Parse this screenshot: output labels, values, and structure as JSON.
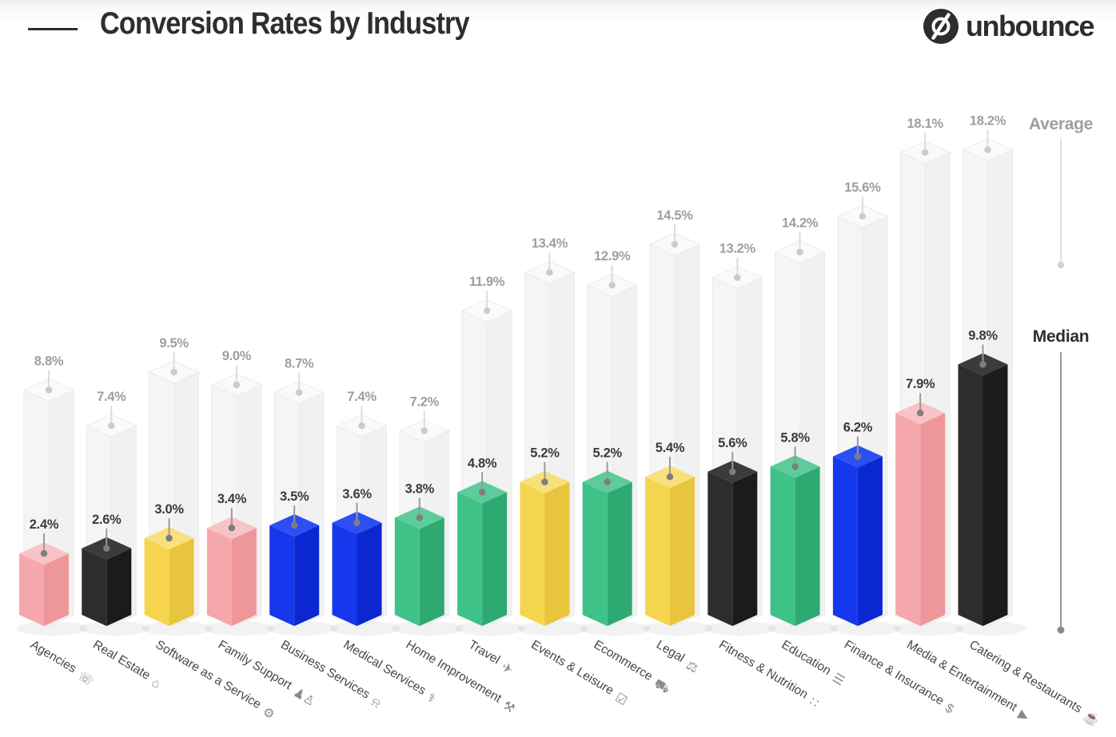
{
  "header": {
    "title": "Conversion Rates by Industry",
    "brand": "unbounce",
    "brand_color": "#2C2D2E"
  },
  "legend": {
    "average_label": "Average",
    "median_label": "Median"
  },
  "palette": {
    "average": {
      "top": "#FAFAFA",
      "left": "#F5F5F5",
      "right": "#F1F1F1",
      "stroke": "#EBEBEB"
    },
    "pink": {
      "top": "#F8C3C6",
      "left": "#F6A7AB",
      "right": "#EE979B"
    },
    "black": {
      "top": "#3B3B3B",
      "left": "#2D2D2D",
      "right": "#1B1B1B"
    },
    "yellow": {
      "top": "#F8E07C",
      "left": "#F6D54E",
      "right": "#E8C53C"
    },
    "blue": {
      "top": "#2B4FF3",
      "left": "#1638EC",
      "right": "#0A27D2"
    },
    "green": {
      "top": "#5ECB9B",
      "left": "#3FC287",
      "right": "#2EA972"
    }
  },
  "annotation": {
    "average_text": "#9E9E9E",
    "average_line": "#DCDCDC",
    "average_dot": "#CBCBCB",
    "median_text": "#3A3A3A",
    "median_line": "#9A9A9A",
    "median_dot": "#7E7E7E",
    "category_text": "#474747",
    "icon_color": "#8A8A8A",
    "shadow_color": "#000000",
    "legend_average_text": "#9E9E9E",
    "legend_average_line": "#E0E0E0",
    "legend_average_dot": "#D2D2D2",
    "legend_median_text": "#2E2E2E",
    "legend_median_line": "#9A9A9A",
    "legend_median_dot": "#8A8A8A"
  },
  "chart_data": {
    "type": "bar",
    "title": "Conversion Rates by Industry",
    "unit": "%",
    "ylim": [
      0,
      19
    ],
    "grid": false,
    "axes_shown": false,
    "value_labels_shown": true,
    "legend_position": "right",
    "categories": [
      "Agencies",
      "Real Estate",
      "Software as a Service",
      "Family Support",
      "Business Services",
      "Medical Services",
      "Home Improvement",
      "Travel",
      "Events & Leisure",
      "Ecommerce",
      "Legal",
      "Fitness & Nutrition",
      "Education",
      "Finance & Insurance",
      "Media & Entertainment",
      "Catering & Restaurants"
    ],
    "category_icons": [
      "megaphone-icon",
      "house-icon",
      "gear-icon",
      "family-icon",
      "service-bell-icon",
      "medical-mask-icon",
      "couch-icon",
      "airplane-icon",
      "calendar-check-icon",
      "shopping-cart-icon",
      "gavel-icon",
      "footprints-icon",
      "open-book-icon",
      "dollar-tag-icon",
      "play-circle-icon",
      "cookie-icon"
    ],
    "category_icon_glyphs": [
      "☏",
      "⌂",
      "⚙",
      "♟♙",
      "⍾",
      "⚕",
      "⚒",
      "✈",
      "☑",
      "⛟",
      "⚖",
      "∷",
      "☰",
      "$",
      "▶",
      "☕"
    ],
    "series": [
      {
        "name": "Average",
        "values": [
          8.8,
          7.4,
          9.5,
          9.0,
          8.7,
          7.4,
          7.2,
          11.9,
          13.4,
          12.9,
          14.5,
          13.2,
          14.2,
          15.6,
          18.1,
          18.2
        ]
      },
      {
        "name": "Median",
        "values": [
          2.4,
          2.6,
          3.0,
          3.4,
          3.5,
          3.6,
          3.8,
          4.8,
          5.2,
          5.2,
          5.4,
          5.6,
          5.8,
          6.2,
          7.9,
          9.8
        ]
      }
    ],
    "median_bar_colors": [
      "pink",
      "black",
      "yellow",
      "pink",
      "blue",
      "blue",
      "green",
      "green",
      "yellow",
      "green",
      "yellow",
      "black",
      "green",
      "blue",
      "pink",
      "black"
    ]
  }
}
